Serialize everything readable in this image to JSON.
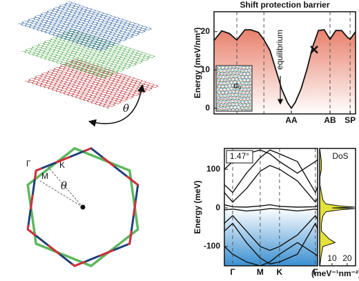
{
  "chart_data": [
    {
      "type": "area",
      "title": "Shift protection barrier",
      "y_label": "Energy (meV/nm²)",
      "annotation": "equilibrium",
      "inset_label": "d₀",
      "x": [
        -2.0,
        -1.8,
        -1.6,
        -1.41,
        -1.2,
        -1.05,
        -0.85,
        -0.71,
        -0.55,
        -0.4,
        -0.25,
        -0.1,
        0,
        0.1,
        0.25,
        0.4,
        0.55,
        0.7,
        0.85,
        1,
        1.15,
        1.3,
        1.45,
        1.52,
        1.66
      ],
      "values": [
        17.7,
        20.2,
        19.5,
        17.8,
        20.5,
        20.5,
        19.8,
        17.9,
        15,
        10,
        5,
        1.5,
        0,
        1.5,
        5,
        10,
        16,
        20.3,
        20.5,
        18,
        20.3,
        20.3,
        18.5,
        18,
        20
      ],
      "color": "#e8806c",
      "marker": {
        "x": 0.59,
        "y": 15.3
      },
      "xlim": [
        -2.0,
        1.66
      ],
      "xticks": [
        {
          "value": 0,
          "label": "AA"
        },
        {
          "value": 1,
          "label": "AB"
        },
        {
          "value": 1.52,
          "label": "SP"
        }
      ],
      "vlines": [
        -1.41,
        -0.71,
        1,
        1.52
      ],
      "ylim": [
        -1.5,
        25.2
      ],
      "yticks": [
        0,
        10,
        20
      ]
    },
    {
      "type": "line",
      "y_label": "Energy (meV)",
      "annotation": "1.47°",
      "color": "#3a8fd2",
      "x": [
        -0.3,
        0,
        0.5,
        1,
        1.35,
        1.7,
        2.35,
        3,
        3.08
      ],
      "series": [
        {
          "values": [
            8,
            3,
            2,
            5,
            8,
            4,
            2,
            3,
            6
          ]
        },
        {
          "values": [
            -5,
            -3,
            -8,
            -5,
            -2,
            -3,
            -8,
            -3,
            -5
          ]
        },
        {
          "values": [
            40,
            15,
            50,
            95,
            110,
            100,
            70,
            15,
            25
          ]
        },
        {
          "values": [
            60,
            40,
            90,
            130,
            150,
            140,
            120,
            40,
            55
          ]
        },
        {
          "values": [
            100,
            120,
            140,
            150,
            140,
            120,
            90,
            120,
            125
          ]
        },
        {
          "values": [
            -40,
            -20,
            -60,
            -100,
            -110,
            -100,
            -70,
            -20,
            -30
          ]
        },
        {
          "values": [
            -60,
            -40,
            -90,
            -130,
            -145,
            -140,
            -120,
            -40,
            -55
          ]
        },
        {
          "values": [
            -100,
            -120,
            -140,
            -150,
            -140,
            -120,
            -90,
            -120,
            -125
          ]
        }
      ],
      "xlim": [
        -0.3,
        3.08
      ],
      "xticks": [
        {
          "value": 0,
          "label": "Γ"
        },
        {
          "value": 1,
          "label": "M"
        },
        {
          "value": 1.7,
          "label": "K"
        },
        {
          "value": 3,
          "label": "Γ"
        }
      ],
      "ylim": [
        -150,
        154
      ],
      "yticks": [
        -100,
        0,
        100
      ]
    },
    {
      "type": "dos",
      "title": "DoS",
      "x_label": "(meV⁻¹nm⁻²)",
      "color": "#e4e23a",
      "y": [
        150,
        120,
        100,
        80,
        60,
        40,
        20,
        10,
        5,
        2,
        0,
        -2,
        -5,
        -10,
        -20,
        -40,
        -60,
        -80,
        -90,
        -100,
        -120,
        -150
      ],
      "values": [
        2,
        3,
        3,
        2,
        2,
        3,
        4,
        6,
        15,
        25,
        10,
        25,
        15,
        6,
        4,
        3,
        3,
        8,
        12,
        4,
        3,
        2
      ],
      "xlim": [
        1.8,
        25.5
      ],
      "xticks": [
        10,
        20
      ],
      "ylim": [
        -150,
        154
      ]
    }
  ],
  "diagram": {
    "twist_angle": "θ",
    "bz_labels": [
      "Γ",
      "M",
      "K"
    ],
    "bz_angle": "θ"
  }
}
